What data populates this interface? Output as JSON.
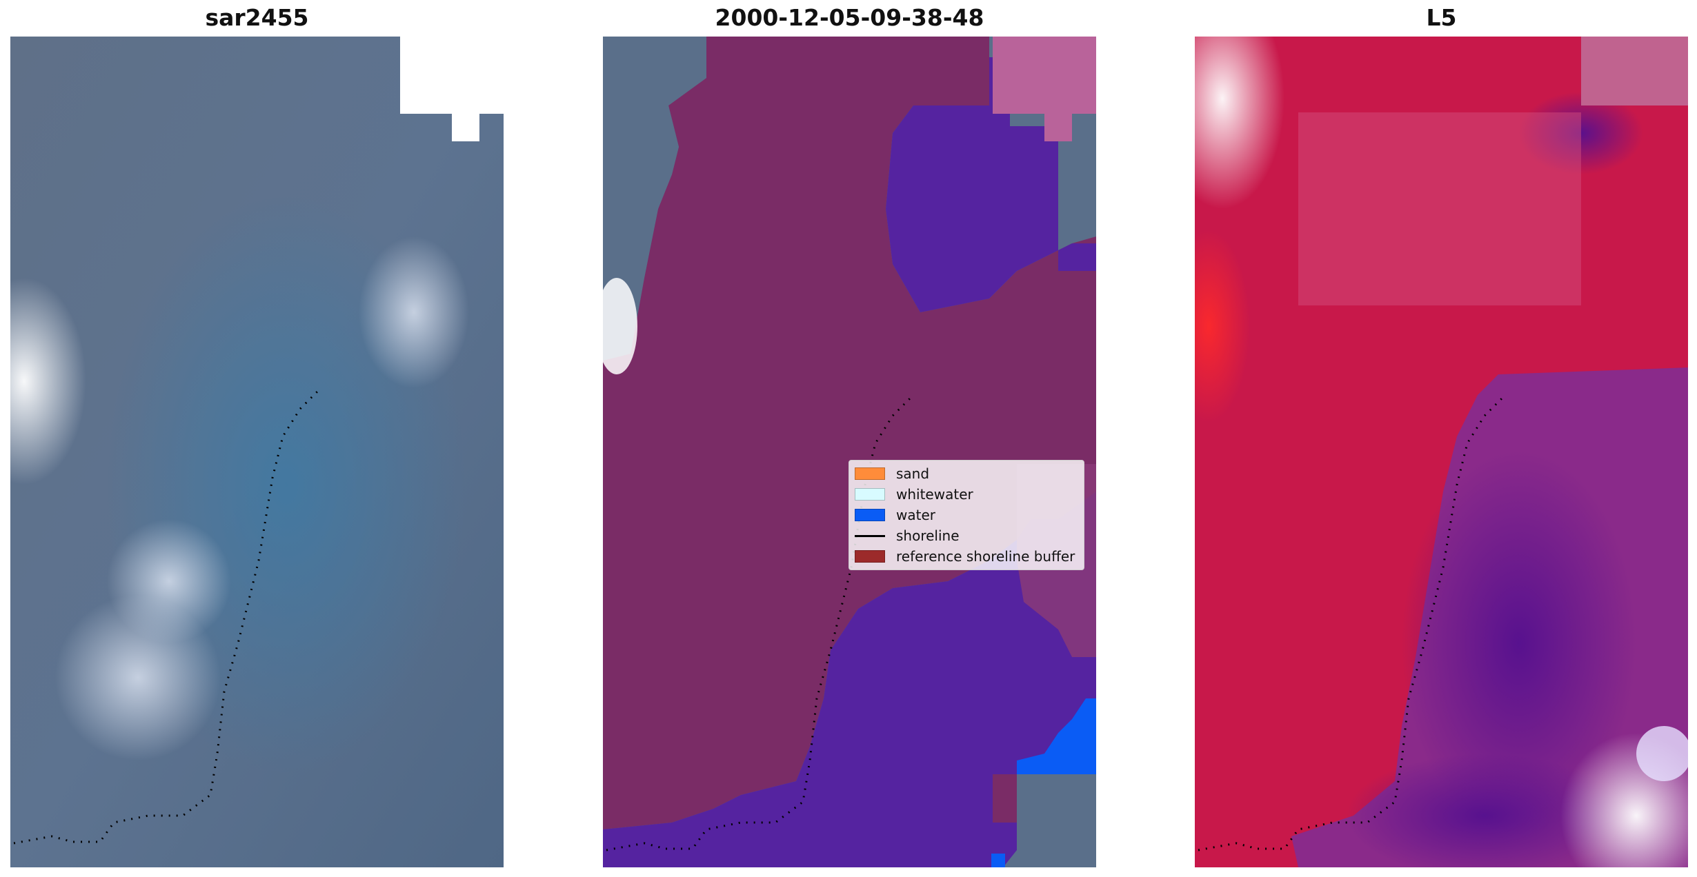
{
  "panels": [
    {
      "title": "sar2455"
    },
    {
      "title": "2000-12-05-09-38-48"
    },
    {
      "title": "L5"
    }
  ],
  "legend": {
    "items": [
      {
        "label": "sand",
        "color": "#ff8c3a",
        "kind": "patch"
      },
      {
        "label": "whitewater",
        "color": "#d8fbff",
        "kind": "patch"
      },
      {
        "label": "water",
        "color": "#0a5cf5",
        "kind": "patch"
      },
      {
        "label": "shoreline",
        "color": "#000000",
        "kind": "line"
      },
      {
        "label": "reference shoreline buffer",
        "color": "#9c2a2a",
        "kind": "patch"
      }
    ]
  },
  "colors": {
    "rgb_base": "#5a6f8a",
    "land_overlay": "#7a2c66",
    "water_overlay": "#5523a0",
    "index_land": "#c8184a",
    "index_water": "#6a1a9a"
  }
}
